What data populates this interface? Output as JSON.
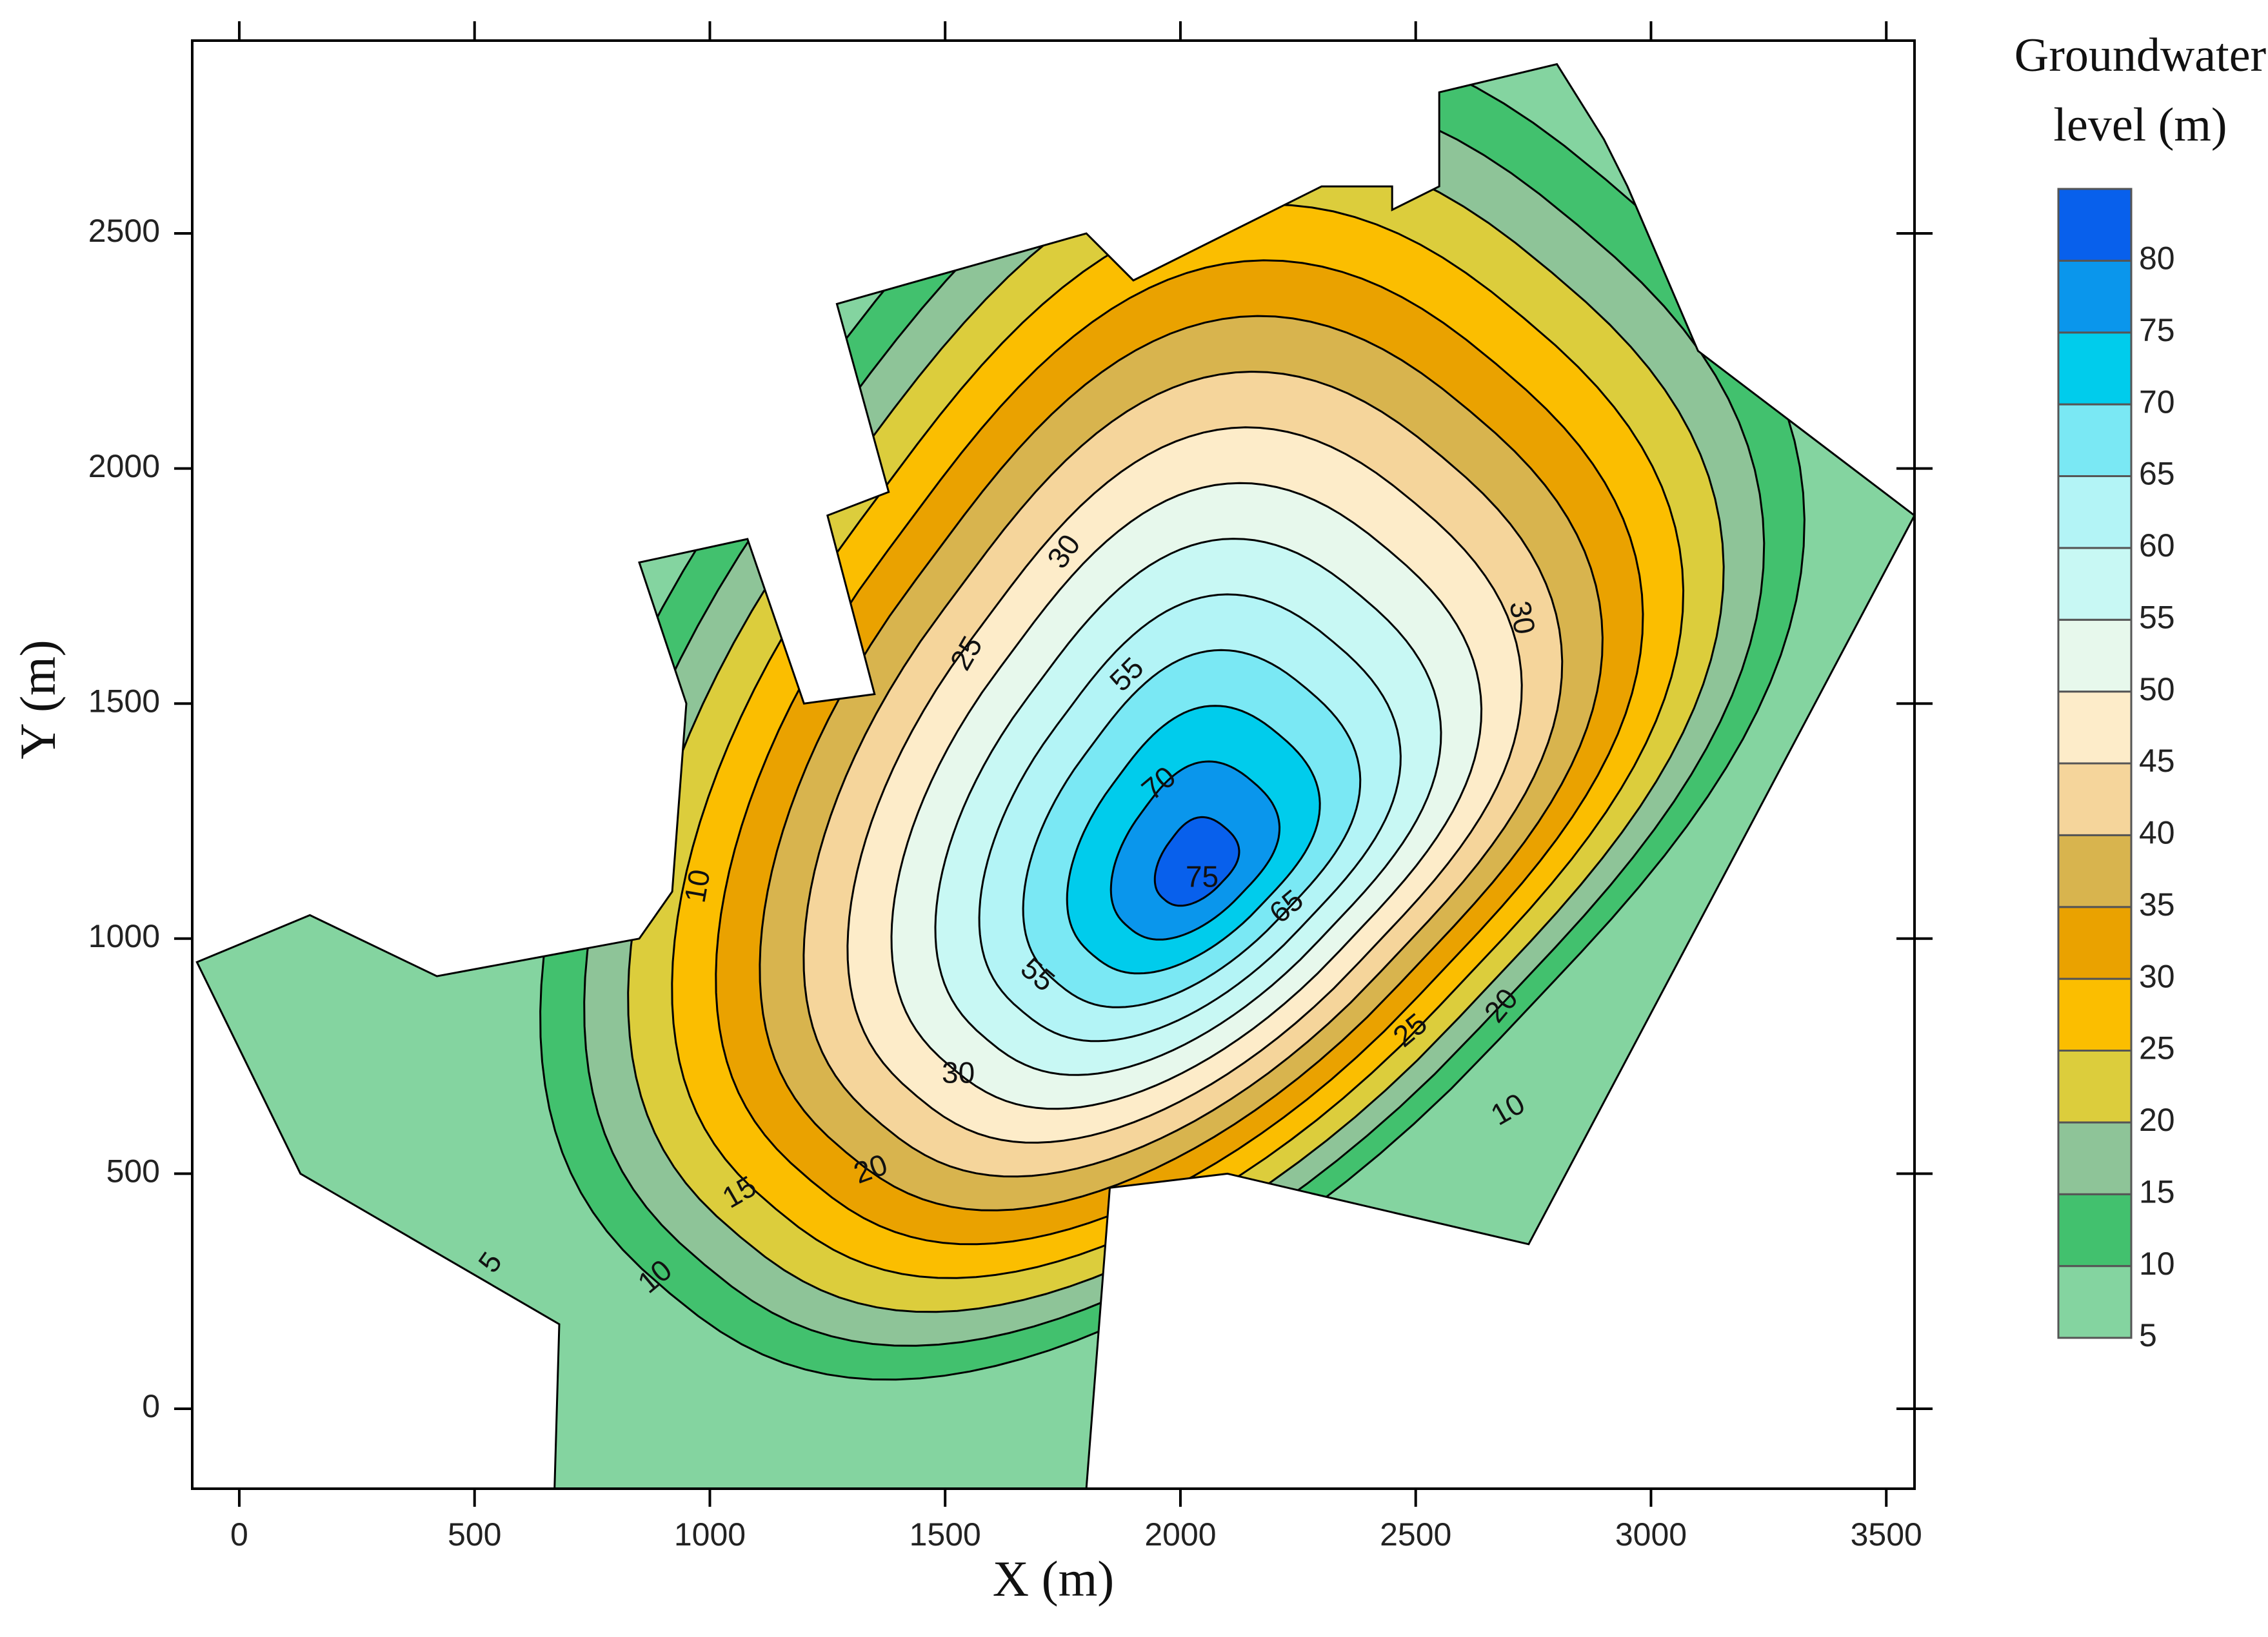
{
  "chart_data": {
    "type": "contour",
    "x_label": "X (m)",
    "y_label": "Y (m)",
    "xlim": [
      -100,
      3560
    ],
    "ylim": [
      -170,
      2910
    ],
    "xticks": [
      0,
      500,
      1000,
      1500,
      2000,
      2500,
      3000,
      3500
    ],
    "yticks": [
      0,
      500,
      1000,
      1500,
      2000,
      2500
    ],
    "colorbar": {
      "title": [
        "Groundwater",
        "level (m)"
      ],
      "levels": [
        5,
        10,
        15,
        20,
        25,
        30,
        35,
        40,
        45,
        50,
        55,
        60,
        65,
        70,
        75,
        80
      ],
      "colors": [
        "#84d4a0",
        "#42c16e",
        "#8ec498",
        "#dccd3c",
        "#fbbe00",
        "#eaa200",
        "#d8b44e",
        "#f5d59b",
        "#fdecc9",
        "#e7f8ec",
        "#c8f8f4",
        "#b3f4f6",
        "#7ae8f4",
        "#00ccec",
        "#0a96ec",
        "#0860ec"
      ]
    },
    "contour_labels": [
      5,
      10,
      15,
      20,
      10,
      25,
      30,
      55,
      70,
      75,
      65,
      55,
      30,
      25,
      20,
      10,
      30
    ]
  }
}
